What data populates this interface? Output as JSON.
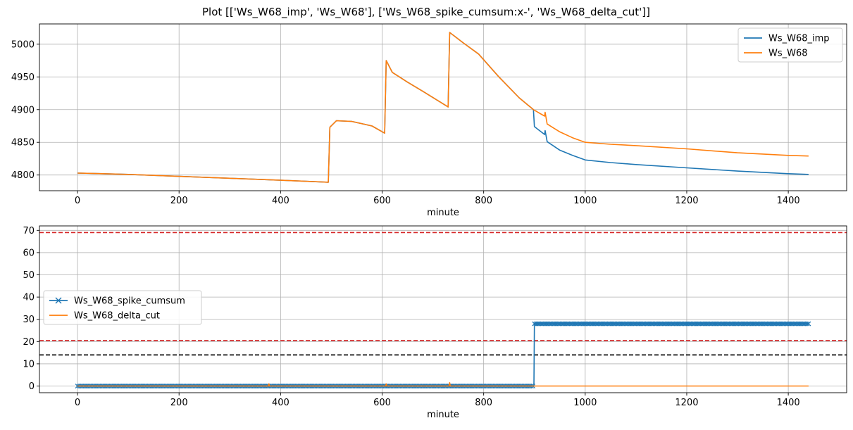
{
  "figure": {
    "title": "Plot [['Ws_W68_imp', 'Ws_W68'], ['Ws_W68_spike_cumsum:x-', 'Ws_W68_delta_cut']]"
  },
  "colors": {
    "blue": "#1f77b4",
    "orange": "#ff7f0e",
    "grid": "#b0b0b0",
    "red_line": "#d62728",
    "black_line": "#000000"
  },
  "chart_data": [
    {
      "type": "line",
      "xlabel": "minute",
      "ylabel": "",
      "xlim": [
        -75,
        1515
      ],
      "ylim": [
        4776,
        5031
      ],
      "xticks": [
        0,
        200,
        400,
        600,
        800,
        1000,
        1200,
        1400
      ],
      "yticks": [
        4800,
        4850,
        4900,
        4950,
        5000
      ],
      "grid": true,
      "legend": "top-right",
      "series": [
        {
          "name": "Ws_W68_imp",
          "color": "#1f77b4",
          "points": [
            [
              0,
              4803
            ],
            [
              100,
              4801
            ],
            [
              200,
              4798
            ],
            [
              300,
              4795
            ],
            [
              400,
              4792
            ],
            [
              494,
              4789
            ],
            [
              497,
              4873
            ],
            [
              510,
              4883
            ],
            [
              540,
              4882
            ],
            [
              580,
              4875
            ],
            [
              605,
              4864
            ],
            [
              608,
              4975
            ],
            [
              620,
              4957
            ],
            [
              650,
              4942
            ],
            [
              680,
              4928
            ],
            [
              730,
              4904
            ],
            [
              733,
              5018
            ],
            [
              760,
              5002
            ],
            [
              790,
              4985
            ],
            [
              830,
              4950
            ],
            [
              870,
              4918
            ],
            [
              898,
              4900
            ],
            [
              900,
              4874
            ],
            [
              920,
              4862
            ],
            [
              921,
              4868
            ],
            [
              925,
              4851
            ],
            [
              950,
              4838
            ],
            [
              975,
              4830
            ],
            [
              1000,
              4823
            ],
            [
              1050,
              4819
            ],
            [
              1100,
              4816
            ],
            [
              1200,
              4811
            ],
            [
              1300,
              4806
            ],
            [
              1400,
              4802
            ],
            [
              1440,
              4801
            ]
          ]
        },
        {
          "name": "Ws_W68",
          "color": "#ff7f0e",
          "points": [
            [
              0,
              4803
            ],
            [
              100,
              4801
            ],
            [
              200,
              4798
            ],
            [
              300,
              4795
            ],
            [
              400,
              4792
            ],
            [
              494,
              4789
            ],
            [
              497,
              4873
            ],
            [
              510,
              4883
            ],
            [
              540,
              4882
            ],
            [
              580,
              4875
            ],
            [
              605,
              4864
            ],
            [
              608,
              4975
            ],
            [
              620,
              4957
            ],
            [
              650,
              4942
            ],
            [
              680,
              4928
            ],
            [
              730,
              4904
            ],
            [
              733,
              5018
            ],
            [
              760,
              5002
            ],
            [
              790,
              4985
            ],
            [
              830,
              4950
            ],
            [
              870,
              4918
            ],
            [
              898,
              4900
            ],
            [
              920,
              4890
            ],
            [
              921,
              4896
            ],
            [
              925,
              4878
            ],
            [
              950,
              4866
            ],
            [
              975,
              4857
            ],
            [
              1000,
              4850
            ],
            [
              1050,
              4847
            ],
            [
              1100,
              4845
            ],
            [
              1200,
              4840
            ],
            [
              1300,
              4834
            ],
            [
              1400,
              4830
            ],
            [
              1440,
              4829
            ]
          ]
        }
      ]
    },
    {
      "type": "line",
      "xlabel": "minute",
      "ylabel": "",
      "xlim": [
        -75,
        1515
      ],
      "ylim": [
        -3,
        72
      ],
      "xticks": [
        0,
        200,
        400,
        600,
        800,
        1000,
        1200,
        1400
      ],
      "yticks": [
        0,
        10,
        20,
        30,
        40,
        50,
        60,
        70
      ],
      "grid": true,
      "legend": "center-left",
      "series": [
        {
          "name": "Ws_W68_spike_cumsum",
          "color": "#1f77b4",
          "marker": "x",
          "points": [
            [
              0,
              0
            ],
            [
              899,
              0
            ],
            [
              900,
              28
            ],
            [
              1440,
              28
            ]
          ]
        },
        {
          "name": "Ws_W68_delta_cut",
          "color": "#ff7f0e",
          "points": [
            [
              0,
              0
            ],
            [
              376,
              0
            ],
            [
              377,
              1
            ],
            [
              378,
              0
            ],
            [
              607,
              0
            ],
            [
              608,
              1
            ],
            [
              609,
              0
            ],
            [
              732,
              0
            ],
            [
              733,
              1.5
            ],
            [
              734,
              0
            ],
            [
              1440,
              0
            ]
          ]
        }
      ],
      "hlines": [
        {
          "y": 69,
          "color": "#d62728",
          "style": "dashed"
        },
        {
          "y": 20.5,
          "color": "#d62728",
          "style": "dashed"
        },
        {
          "y": 14,
          "color": "#000000",
          "style": "dashed"
        }
      ]
    }
  ]
}
